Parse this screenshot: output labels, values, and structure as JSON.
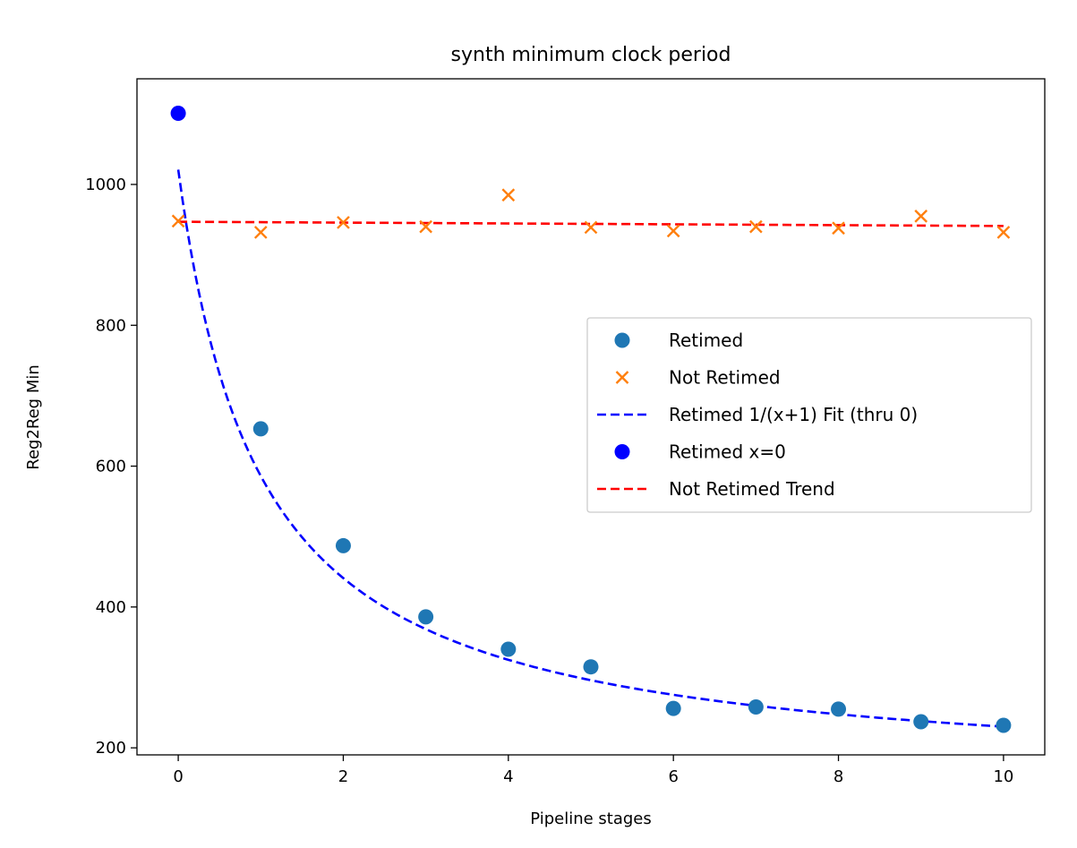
{
  "chart_data": {
    "type": "scatter",
    "title": "synth minimum clock period",
    "xlabel": "Pipeline stages",
    "ylabel": "Reg2Reg Min",
    "xlim": [
      -0.5,
      10.5
    ],
    "ylim": [
      190,
      1150
    ],
    "xticks": [
      0,
      2,
      4,
      6,
      8,
      10
    ],
    "yticks": [
      200,
      400,
      600,
      800,
      1000
    ],
    "grid": false,
    "legend_position": "center-right",
    "series": [
      {
        "name": "Retimed",
        "kind": "scatter",
        "marker": "circle",
        "color": "#1f77b4",
        "x": [
          1,
          2,
          3,
          4,
          5,
          6,
          7,
          8,
          9,
          10
        ],
        "y": [
          653,
          487,
          386,
          340,
          315,
          256,
          258,
          255,
          237,
          232
        ]
      },
      {
        "name": "Not Retimed",
        "kind": "scatter",
        "marker": "x",
        "color": "#ff7f0e",
        "x": [
          0,
          1,
          2,
          3,
          4,
          5,
          6,
          7,
          8,
          9,
          10
        ],
        "y": [
          948,
          932,
          946,
          940,
          985,
          939,
          934,
          940,
          938,
          955,
          932
        ]
      },
      {
        "name": "Retimed 1/(x+1) Fit (thru 0)",
        "kind": "line",
        "dash": true,
        "color": "#0000ff",
        "formula": "y = 870/(x+1) + 151"
      },
      {
        "name": "Retimed x=0",
        "kind": "scatter",
        "marker": "circle",
        "color": "#0000ff",
        "x": [
          0
        ],
        "y": [
          1101
        ]
      },
      {
        "name": "Not Retimed Trend",
        "kind": "line",
        "dash": true,
        "color": "#ff0000",
        "x": [
          0,
          10
        ],
        "y": [
          947,
          941
        ]
      }
    ]
  }
}
